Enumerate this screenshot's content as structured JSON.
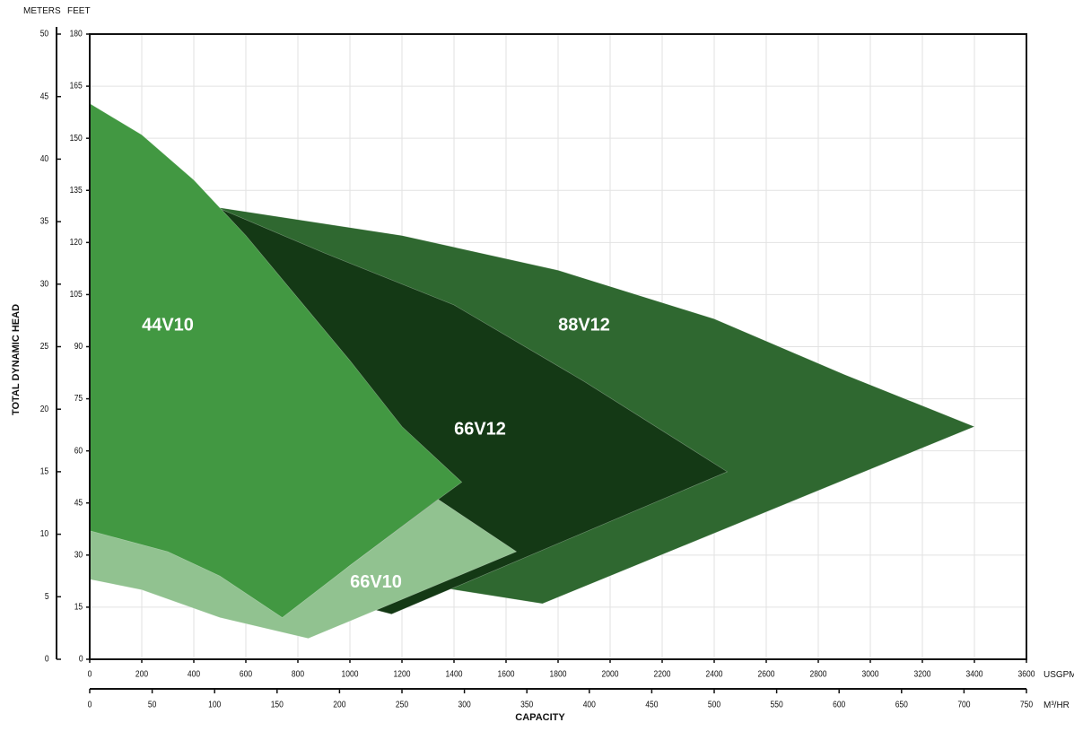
{
  "chart_data": {
    "type": "area",
    "title": "",
    "xlabel": "CAPACITY",
    "ylabel": "TOTAL DYNAMIC HEAD",
    "x_unit_primary": "USGPM",
    "x_unit_secondary": "M³/HR",
    "y_unit_left": "METERS",
    "y_unit_right": "FEET",
    "x_range_usgpm": [
      0,
      3600
    ],
    "x_range_m3hr": [
      0,
      750
    ],
    "y_range_feet": [
      0,
      180
    ],
    "y_range_meters": [
      0,
      50
    ],
    "x_ticks_usgpm": [
      0,
      200,
      400,
      600,
      800,
      1000,
      1200,
      1400,
      1600,
      1800,
      2000,
      2200,
      2400,
      2600,
      2800,
      3000,
      3200,
      3400,
      3600
    ],
    "x_ticks_m3hr": [
      0,
      50,
      100,
      150,
      200,
      250,
      300,
      350,
      400,
      450,
      500,
      550,
      600,
      650,
      700,
      750
    ],
    "y_ticks_feet": [
      0,
      15,
      30,
      45,
      60,
      75,
      90,
      105,
      120,
      135,
      150,
      165,
      180
    ],
    "y_ticks_meters": [
      0,
      5,
      10,
      15,
      20,
      25,
      30,
      35,
      40,
      45,
      50
    ],
    "grid": true,
    "series": [
      {
        "name": "88V12",
        "color": "#2f6830",
        "label_at": [
          1900,
          96
        ],
        "polygon": [
          [
            500,
            130
          ],
          [
            1200,
            122
          ],
          [
            1800,
            112
          ],
          [
            2400,
            98
          ],
          [
            2900,
            82
          ],
          [
            3400,
            67
          ],
          [
            1740,
            16
          ],
          [
            1150,
            23
          ],
          [
            600,
            35
          ]
        ]
      },
      {
        "name": "66V12",
        "color": "#143915",
        "label_at": [
          1500,
          66
        ],
        "polygon": [
          [
            460,
            131
          ],
          [
            900,
            117
          ],
          [
            1400,
            102
          ],
          [
            1900,
            80
          ],
          [
            2450,
            54
          ],
          [
            1160,
            13
          ],
          [
            800,
            20
          ],
          [
            600,
            28
          ]
        ]
      },
      {
        "name": "44V10",
        "color": "#429842",
        "label_at": [
          300,
          96
        ],
        "polygon": [
          [
            0,
            160
          ],
          [
            200,
            151
          ],
          [
            400,
            138
          ],
          [
            600,
            122
          ],
          [
            800,
            104
          ],
          [
            1000,
            86
          ],
          [
            1200,
            67
          ],
          [
            1430,
            51
          ],
          [
            1320,
            45
          ],
          [
            1000,
            27
          ],
          [
            740,
            11
          ],
          [
            500,
            18
          ],
          [
            300,
            24
          ],
          [
            0,
            37
          ]
        ]
      },
      {
        "name": "66V10",
        "color": "#91c290",
        "label_at": [
          1100,
          22
        ],
        "polygon": [
          [
            0,
            37
          ],
          [
            300,
            31
          ],
          [
            500,
            24
          ],
          [
            740,
            12
          ],
          [
            1000,
            27
          ],
          [
            1340,
            46
          ],
          [
            1640,
            31
          ],
          [
            840,
            6
          ],
          [
            500,
            12
          ],
          [
            200,
            20
          ],
          [
            0,
            23
          ]
        ]
      }
    ]
  }
}
